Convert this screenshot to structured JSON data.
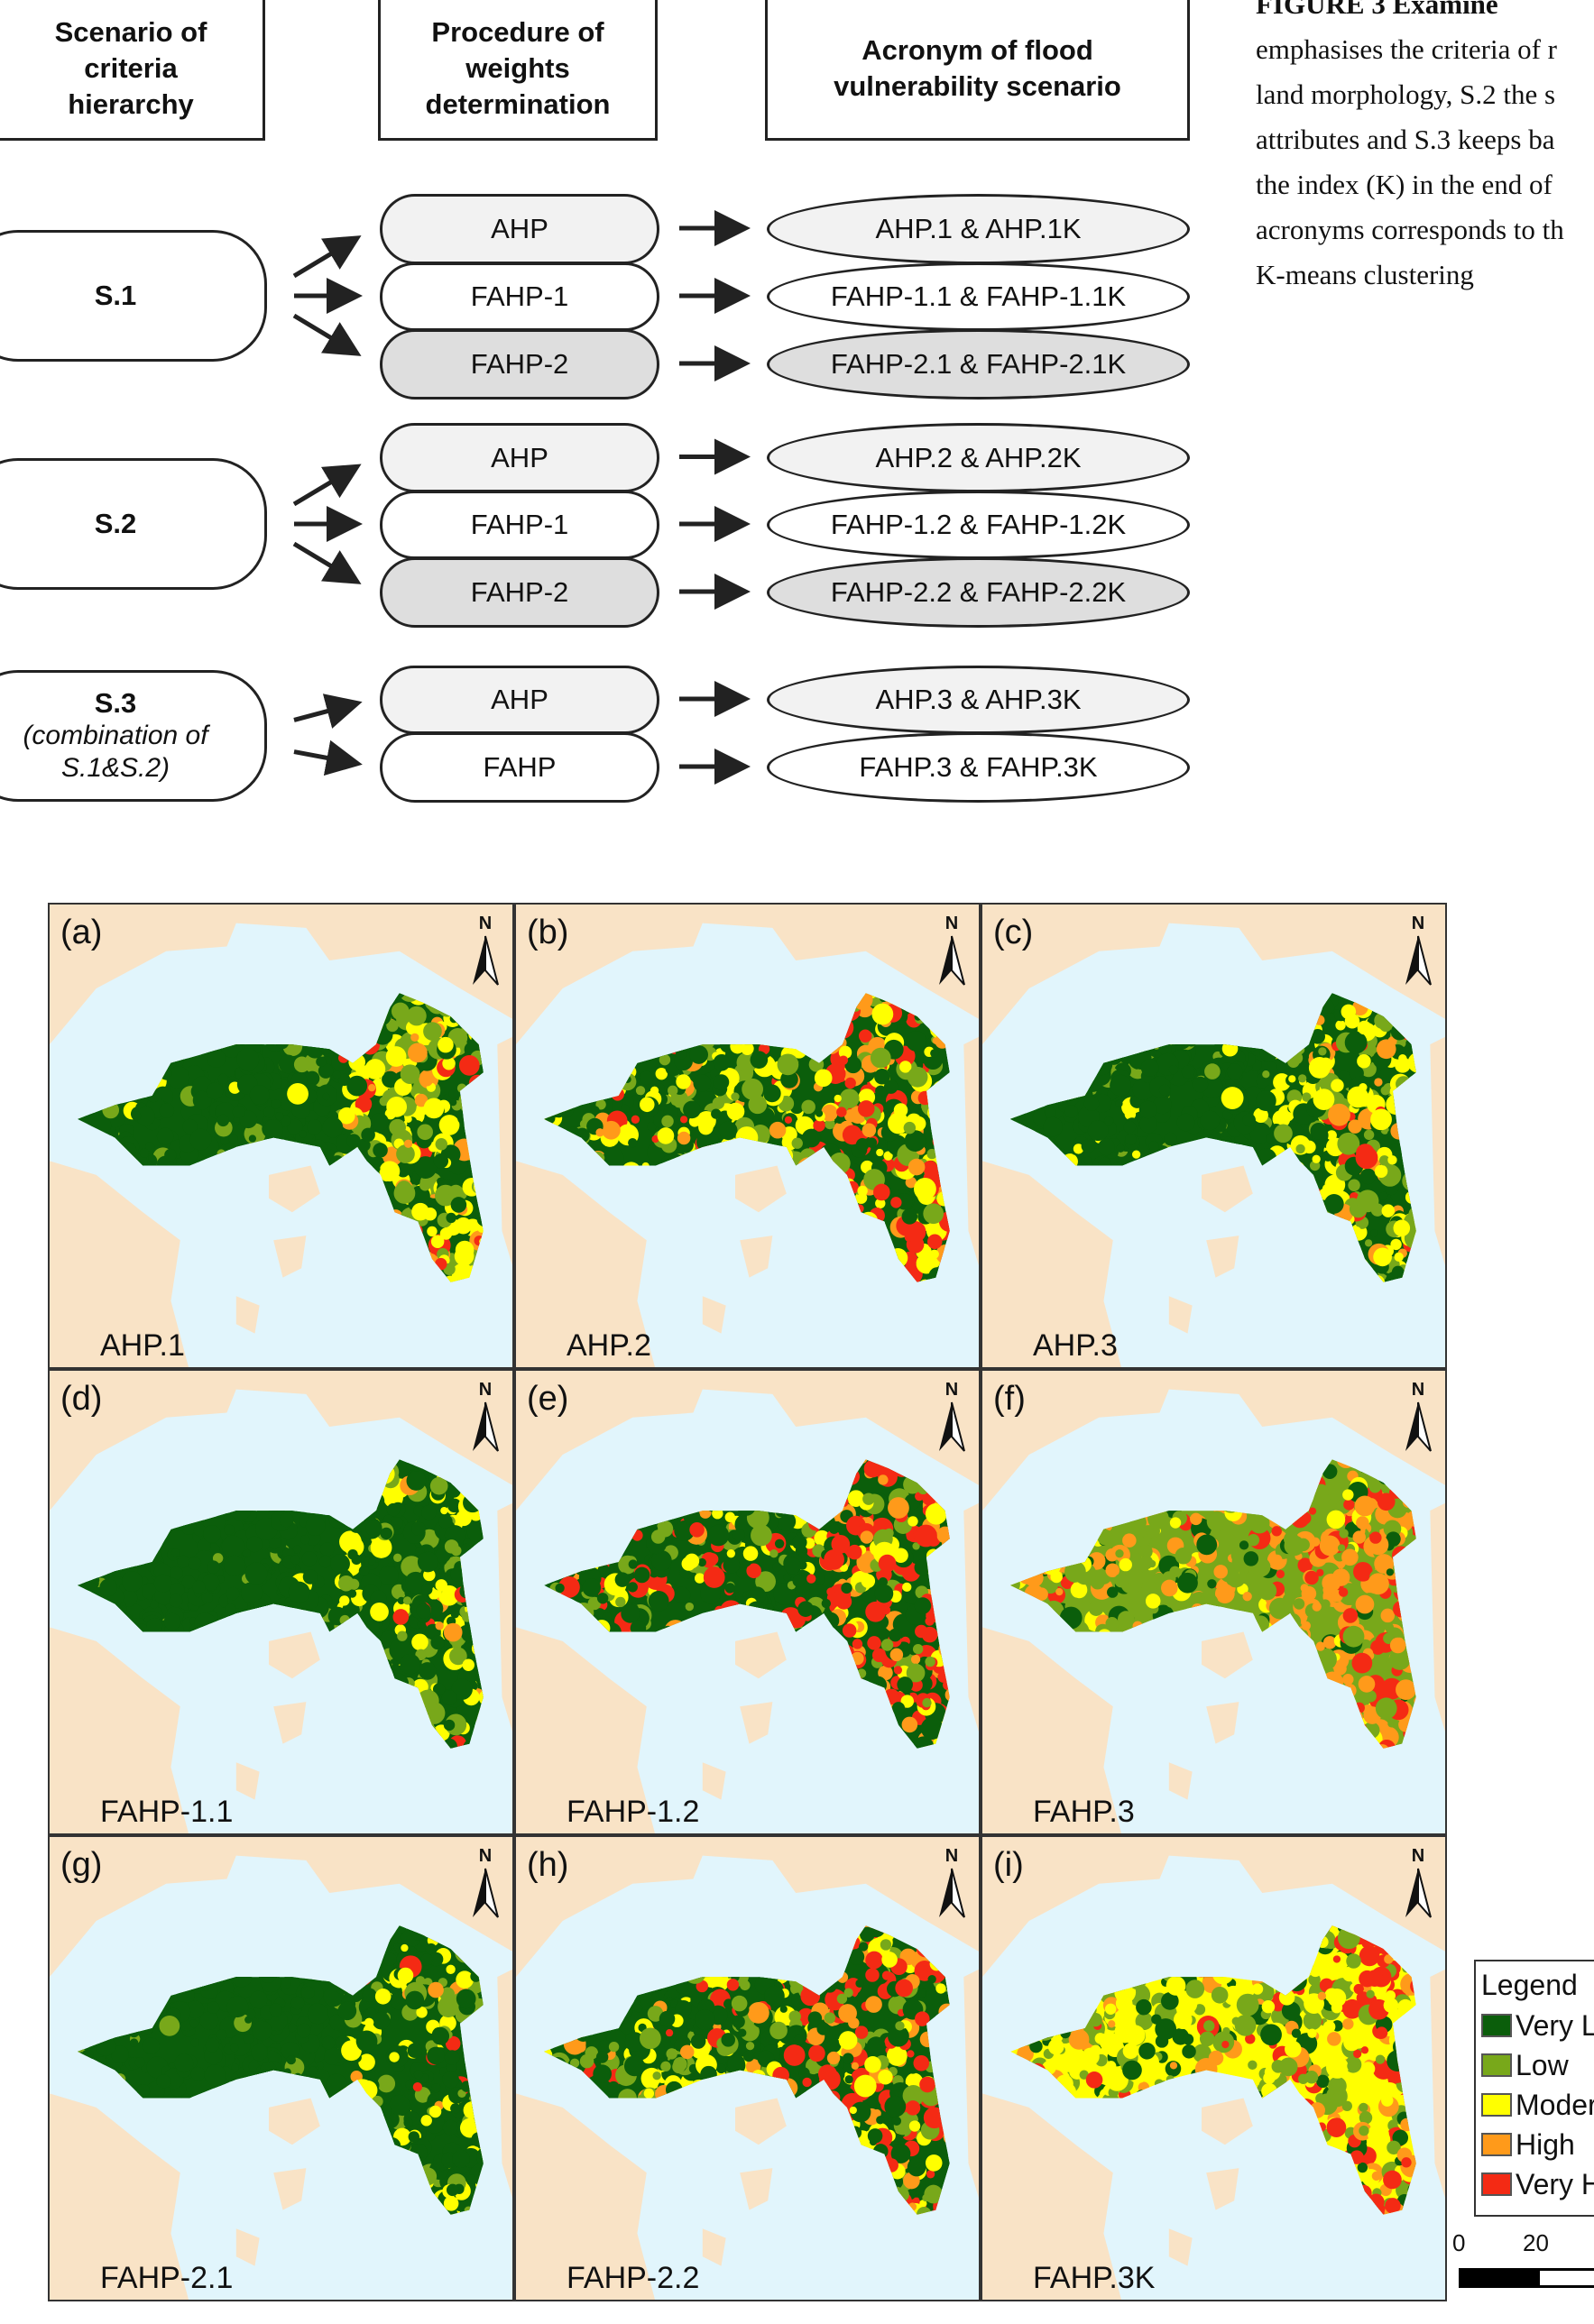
{
  "header": {
    "scenario": "Scenario of criteria hierarchy",
    "procedure": "Procedure of weights determination",
    "acronym": "Acronym of flood vulnerability scenario"
  },
  "rows": [
    {
      "scenario": "S.1",
      "scenario_note": "",
      "procedures": [
        "AHP",
        "FAHP-1",
        "FAHP-2"
      ],
      "acronyms": [
        "AHP.1 & AHP.1K",
        "FAHP-1.1 & FAHP-1.1K",
        "FAHP-2.1 & FAHP-2.1K"
      ]
    },
    {
      "scenario": "S.2",
      "scenario_note": "",
      "procedures": [
        "AHP",
        "FAHP-1",
        "FAHP-2"
      ],
      "acronyms": [
        "AHP.2 & AHP.2K",
        "FAHP-1.2 & FAHP-1.2K",
        "FAHP-2.2 & FAHP-2.2K"
      ]
    },
    {
      "scenario": "S.3",
      "scenario_note": "(combination of S.1&S.2)",
      "procedures": [
        "AHP",
        "FAHP"
      ],
      "acronyms": [
        "AHP.3 & AHP.3K",
        "FAHP.3 & FAHP.3K"
      ]
    }
  ],
  "caption": {
    "lines": [
      "FIGURE 3   Examine",
      "emphasises the criteria of r",
      "land morphology, S.2 the s",
      "attributes and S.3 keeps ba",
      "the index (K) in the end of",
      "acronyms corresponds to th",
      "K-means clustering"
    ]
  },
  "panels": [
    {
      "letter": "(a)",
      "label": "AHP.1"
    },
    {
      "letter": "(b)",
      "label": "AHP.2"
    },
    {
      "letter": "(c)",
      "label": "AHP.3"
    },
    {
      "letter": "(d)",
      "label": "FAHP-1.1"
    },
    {
      "letter": "(e)",
      "label": "FAHP-1.2"
    },
    {
      "letter": "(f)",
      "label": "FAHP.3"
    },
    {
      "letter": "(g)",
      "label": "FAHP-2.1"
    },
    {
      "letter": "(h)",
      "label": "FAHP-2.2"
    },
    {
      "letter": "(i)",
      "label": "FAHP.3K"
    }
  ],
  "north": "N",
  "legend": {
    "title": "Legend",
    "items": [
      {
        "label": "Very L",
        "color": "#0b5e0b"
      },
      {
        "label": "Low",
        "color": "#78a81a"
      },
      {
        "label": "Moder",
        "color": "#ffff00"
      },
      {
        "label": "High",
        "color": "#ff9a1a"
      },
      {
        "label": "Very H",
        "color": "#f42a14"
      }
    ]
  },
  "scale": {
    "ticks": [
      "0",
      "20"
    ]
  },
  "colors": {
    "sea": "#e1f5fc",
    "land": "#f9e3c6"
  }
}
